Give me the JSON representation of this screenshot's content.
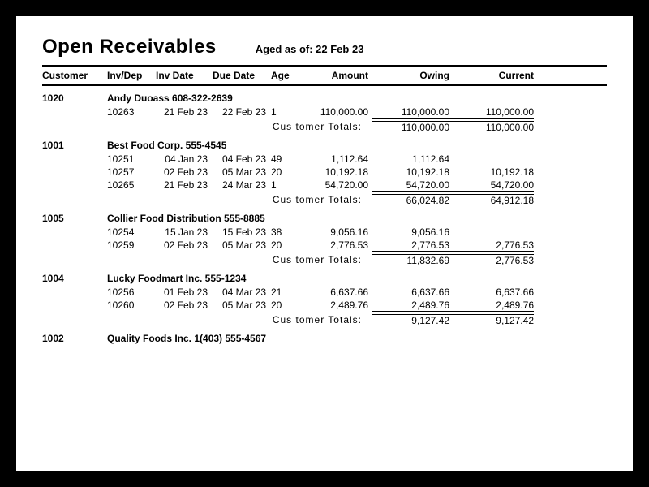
{
  "report": {
    "title": "Open Receivables",
    "aged_prefix": "Aged as of: ",
    "aged_date": "22 Feb 23",
    "totals_label": "Cus tomer Totals:",
    "columns": {
      "customer": "Customer",
      "invdep": "Inv/Dep",
      "invdate": "Inv Date",
      "duedate": "Due Date",
      "age": "Age",
      "amount": "Amount",
      "owing": "Owing",
      "current": "Current"
    }
  },
  "customers": [
    {
      "id": "1020",
      "name": "Andy Duoass",
      "phone": "608-322-2639",
      "invoices": [
        {
          "invdep": "10263",
          "invdate": "21 Feb 23",
          "duedate": "22 Feb 23",
          "age": "1",
          "amount": "110,000.00",
          "owing": "110,000.00",
          "current": "110,000.00"
        }
      ],
      "totals": {
        "owing": "110,000.00",
        "current": "110,000.00"
      }
    },
    {
      "id": "1001",
      "name": "Best Food Corp.",
      "phone": "555-4545",
      "invoices": [
        {
          "invdep": "10251",
          "invdate": "04 Jan 23",
          "duedate": "04 Feb 23",
          "age": "49",
          "amount": "1,112.64",
          "owing": "1,112.64",
          "current": ""
        },
        {
          "invdep": "10257",
          "invdate": "02 Feb 23",
          "duedate": "05 Mar 23",
          "age": "20",
          "amount": "10,192.18",
          "owing": "10,192.18",
          "current": "10,192.18"
        },
        {
          "invdep": "10265",
          "invdate": "21 Feb 23",
          "duedate": "24 Mar 23",
          "age": "1",
          "amount": "54,720.00",
          "owing": "54,720.00",
          "current": "54,720.00"
        }
      ],
      "totals": {
        "owing": "66,024.82",
        "current": "64,912.18"
      }
    },
    {
      "id": "1005",
      "name": "Collier Food Distribution",
      "phone": "555-8885",
      "invoices": [
        {
          "invdep": "10254",
          "invdate": "15 Jan 23",
          "duedate": "15 Feb 23",
          "age": "38",
          "amount": "9,056.16",
          "owing": "9,056.16",
          "current": ""
        },
        {
          "invdep": "10259",
          "invdate": "02 Feb 23",
          "duedate": "05 Mar 23",
          "age": "20",
          "amount": "2,776.53",
          "owing": "2,776.53",
          "current": "2,776.53"
        }
      ],
      "totals": {
        "owing": "11,832.69",
        "current": "2,776.53"
      }
    },
    {
      "id": "1004",
      "name": "Lucky Foodmart Inc.",
      "phone": "555-1234",
      "invoices": [
        {
          "invdep": "10256",
          "invdate": "01 Feb 23",
          "duedate": "04 Mar 23",
          "age": "21",
          "amount": "6,637.66",
          "owing": "6,637.66",
          "current": "6,637.66"
        },
        {
          "invdep": "10260",
          "invdate": "02 Feb 23",
          "duedate": "05 Mar 23",
          "age": "20",
          "amount": "2,489.76",
          "owing": "2,489.76",
          "current": "2,489.76"
        }
      ],
      "totals": {
        "owing": "9,127.42",
        "current": "9,127.42"
      }
    },
    {
      "id": "1002",
      "name": "Quality Foods Inc.",
      "phone": "1(403) 555-4567",
      "invoices": [],
      "totals": null
    }
  ]
}
